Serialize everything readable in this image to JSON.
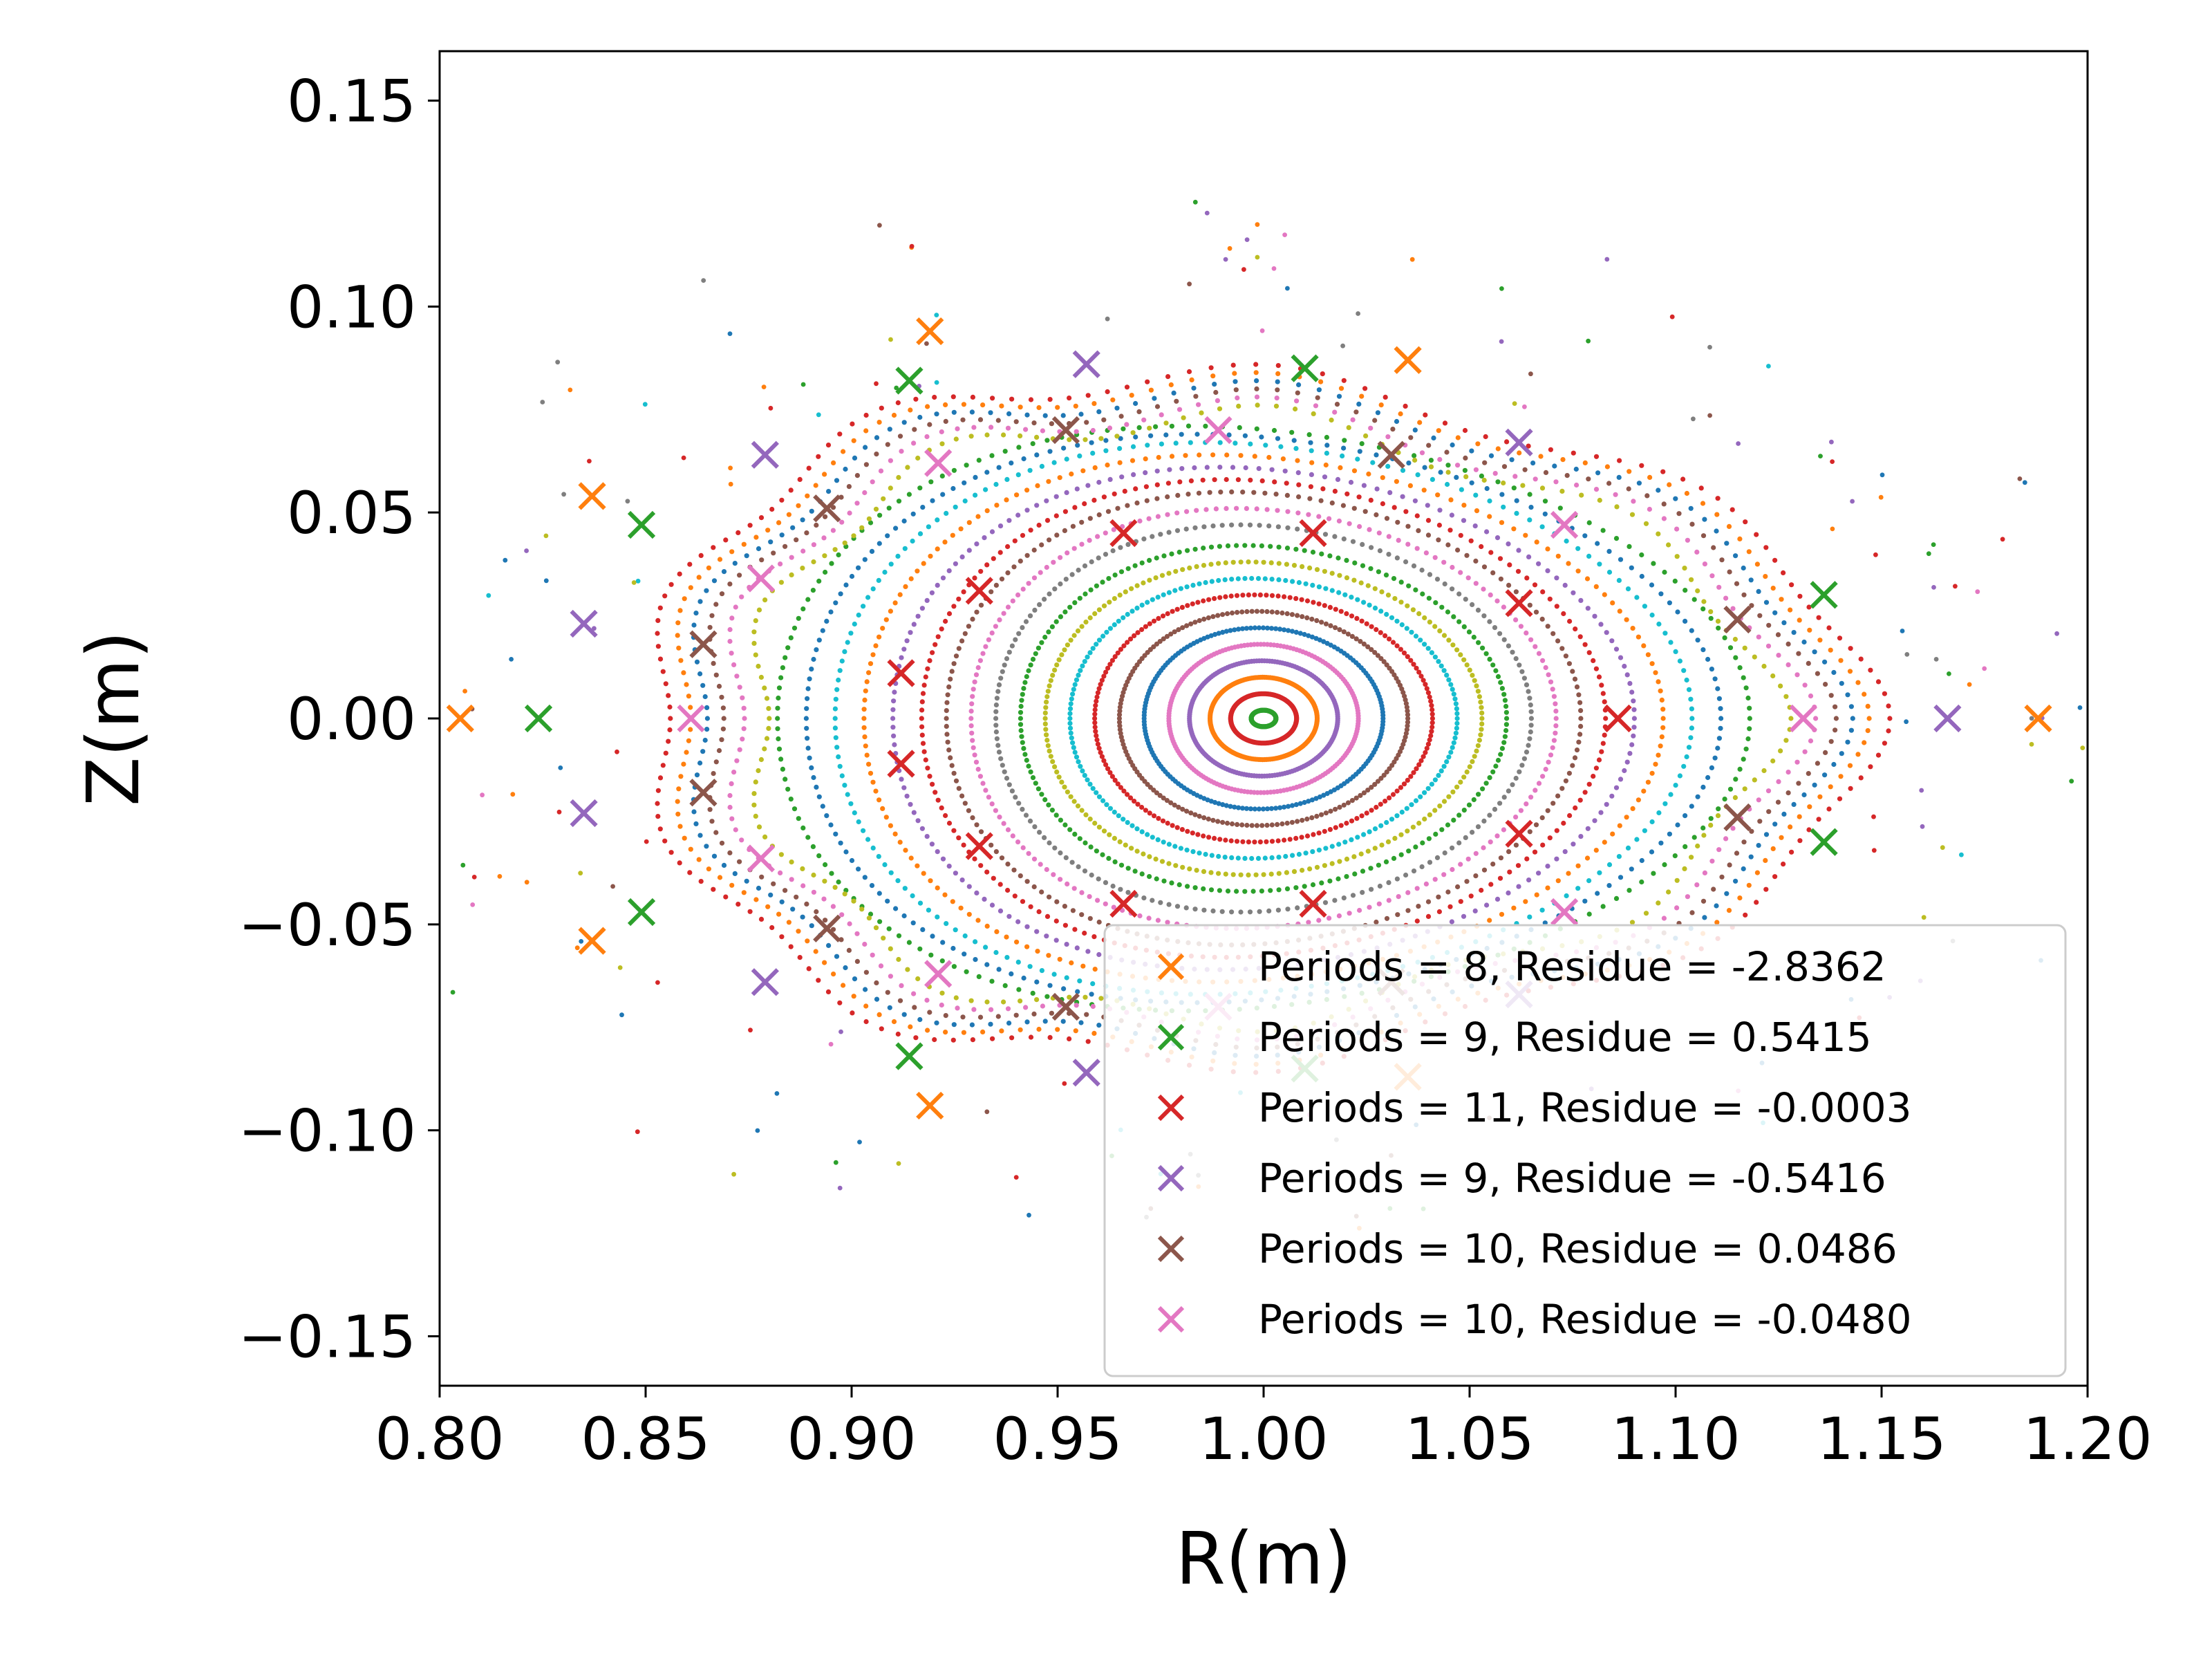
{
  "chart_data": {
    "type": "scatter",
    "title": "",
    "xlabel": "R(m)",
    "ylabel": "Z(m)",
    "xlim": [
      0.8,
      1.2
    ],
    "ylim": [
      -0.162,
      0.162
    ],
    "x_ticks": [
      0.8,
      0.85,
      0.9,
      0.95,
      1.0,
      1.05,
      1.1,
      1.15,
      1.2
    ],
    "x_tick_labels": [
      "0.80",
      "0.85",
      "0.90",
      "0.95",
      "1.00",
      "1.05",
      "1.10",
      "1.15",
      "1.20"
    ],
    "y_ticks": [
      0.15,
      0.1,
      0.05,
      0.0,
      -0.05,
      -0.1,
      -0.15
    ],
    "y_tick_labels": [
      "0.15",
      "0.10",
      "0.05",
      "0.00",
      "−0.05",
      "−0.10",
      "−0.15"
    ],
    "grid": false,
    "legend_position": "lower-right",
    "poincare_center": [
      1.0,
      0.0
    ],
    "flux_surfaces": [
      {
        "a": 0.003,
        "b": 0.002,
        "color": "#2ca02c"
      },
      {
        "a": 0.008,
        "b": 0.006,
        "color": "#d62728"
      },
      {
        "a": 0.013,
        "b": 0.01,
        "color": "#ff7f0e"
      },
      {
        "a": 0.018,
        "b": 0.014,
        "color": "#9467bd"
      },
      {
        "a": 0.023,
        "b": 0.018,
        "color": "#e377c2"
      },
      {
        "a": 0.029,
        "b": 0.022,
        "color": "#1f77b4"
      },
      {
        "a": 0.035,
        "b": 0.026,
        "color": "#8c564b"
      },
      {
        "a": 0.041,
        "b": 0.03,
        "color": "#d62728"
      },
      {
        "a": 0.047,
        "b": 0.034,
        "color": "#17becf"
      },
      {
        "a": 0.053,
        "b": 0.038,
        "color": "#bcbd22"
      },
      {
        "a": 0.059,
        "b": 0.042,
        "color": "#2ca02c"
      },
      {
        "a": 0.065,
        "b": 0.047,
        "color": "#7f7f7f"
      },
      {
        "a": 0.071,
        "b": 0.051,
        "color": "#e377c2"
      },
      {
        "a": 0.077,
        "b": 0.055,
        "color": "#8c564b"
      },
      {
        "a": 0.083,
        "b": 0.058,
        "color": "#d62728"
      },
      {
        "a": 0.09,
        "b": 0.061,
        "color": "#9467bd"
      },
      {
        "a": 0.097,
        "b": 0.064,
        "color": "#ff7f0e"
      },
      {
        "a": 0.104,
        "b": 0.067,
        "color": "#17becf"
      },
      {
        "a": 0.111,
        "b": 0.069,
        "color": "#1f77b4"
      },
      {
        "a": 0.118,
        "b": 0.071,
        "color": "#2ca02c"
      },
      {
        "a": 0.124,
        "b": 0.073,
        "color": "#bcbd22"
      },
      {
        "a": 0.13,
        "b": 0.075,
        "color": "#e377c2"
      },
      {
        "a": 0.135,
        "b": 0.077,
        "color": "#8c564b"
      },
      {
        "a": 0.139,
        "b": 0.079,
        "color": "#1f77b4"
      },
      {
        "a": 0.143,
        "b": 0.081,
        "color": "#ff7f0e"
      },
      {
        "a": 0.148,
        "b": 0.083,
        "color": "#d62728"
      }
    ],
    "series": [
      {
        "name": "Periods = 8, Residue = -2.8362",
        "color": "#ff7f0e",
        "points": [
          [
            1.188,
            0.0
          ],
          [
            1.035,
            0.087
          ],
          [
            0.919,
            0.094
          ],
          [
            0.837,
            0.054
          ],
          [
            0.805,
            0.0
          ],
          [
            0.837,
            -0.054
          ],
          [
            0.919,
            -0.094
          ],
          [
            1.035,
            -0.087
          ]
        ]
      },
      {
        "name": "Periods = 9, Residue = 0.5415",
        "color": "#2ca02c",
        "points": [
          [
            1.136,
            0.03
          ],
          [
            1.01,
            0.085
          ],
          [
            0.914,
            0.082
          ],
          [
            0.849,
            0.047
          ],
          [
            0.824,
            0.0
          ],
          [
            0.849,
            -0.047
          ],
          [
            0.914,
            -0.082
          ],
          [
            1.01,
            -0.085
          ],
          [
            1.136,
            -0.03
          ]
        ]
      },
      {
        "name": "Periods = 11, Residue = -0.0003",
        "color": "#d62728",
        "points": [
          [
            1.086,
            0.0
          ],
          [
            1.062,
            0.028
          ],
          [
            1.012,
            0.045
          ],
          [
            0.966,
            0.045
          ],
          [
            0.931,
            0.031
          ],
          [
            0.912,
            0.011
          ],
          [
            0.912,
            -0.011
          ],
          [
            0.931,
            -0.031
          ],
          [
            0.966,
            -0.045
          ],
          [
            1.012,
            -0.045
          ],
          [
            1.062,
            -0.028
          ]
        ]
      },
      {
        "name": "Periods = 9, Residue = -0.5416",
        "color": "#9467bd",
        "points": [
          [
            1.166,
            0.0
          ],
          [
            1.062,
            0.067
          ],
          [
            0.957,
            0.086
          ],
          [
            0.879,
            0.064
          ],
          [
            0.835,
            0.023
          ],
          [
            0.835,
            -0.023
          ],
          [
            0.879,
            -0.064
          ],
          [
            0.957,
            -0.086
          ],
          [
            1.062,
            -0.067
          ]
        ]
      },
      {
        "name": "Periods = 10, Residue = 0.0486",
        "color": "#8c564b",
        "points": [
          [
            1.115,
            0.024
          ],
          [
            1.031,
            0.064
          ],
          [
            0.952,
            0.07
          ],
          [
            0.894,
            0.051
          ],
          [
            0.864,
            0.018
          ],
          [
            0.864,
            -0.018
          ],
          [
            0.894,
            -0.051
          ],
          [
            0.952,
            -0.07
          ],
          [
            1.031,
            -0.064
          ],
          [
            1.115,
            -0.024
          ]
        ]
      },
      {
        "name": "Periods = 10, Residue = -0.0480",
        "color": "#e377c2",
        "points": [
          [
            1.131,
            0.0
          ],
          [
            1.073,
            0.047
          ],
          [
            0.989,
            0.07
          ],
          [
            0.921,
            0.062
          ],
          [
            0.878,
            0.034
          ],
          [
            0.861,
            0.0
          ],
          [
            0.878,
            -0.034
          ],
          [
            0.921,
            -0.062
          ],
          [
            0.989,
            -0.07
          ],
          [
            1.073,
            -0.047
          ]
        ]
      }
    ]
  }
}
